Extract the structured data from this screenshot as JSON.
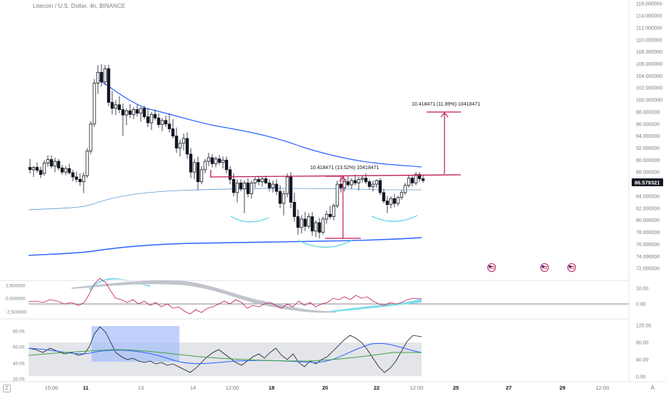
{
  "symbol": {
    "title": "Litecoin / U.S. Dollar, 4h, BINANCE"
  },
  "price_axis": {
    "ticks": [
      "116.000000",
      "114.000000",
      "112.000000",
      "110.000000",
      "108.000000",
      "106.000000",
      "104.000000",
      "102.000000",
      "100.000000",
      "98.000000",
      "96.000000",
      "94.000000",
      "92.000000",
      "90.000000",
      "88.000000",
      "84.000000",
      "82.000000",
      "80.000000",
      "78.000000",
      "76.000000",
      "74.000000",
      "72.000000"
    ],
    "current_price_label": "86.579321",
    "current_price": 86.579321,
    "current_price_bg": "#131722"
  },
  "oscillator_1": {
    "left_labels": [
      "2.500000",
      "0.000000",
      "-2.500000"
    ],
    "right_labels": [
      "10.00",
      "0.00"
    ]
  },
  "oscillator_2": {
    "left_labels": [
      "80.00",
      "60.00",
      "40.00",
      "20.00"
    ],
    "right_labels": [
      "120.00",
      "80.00",
      "40.00",
      "0.00"
    ]
  },
  "time_axis": {
    "labels": [
      "15:00",
      "11",
      "13",
      "14",
      "12:00",
      "18",
      "20",
      "22",
      "12:00",
      "25",
      "27",
      "29",
      "12:00"
    ],
    "bold_labels": [
      "11",
      "18",
      "20",
      "22",
      "25",
      "27",
      "29"
    ]
  },
  "annotations": {
    "measure_1": "10.418471 (13.52%) 10418471",
    "measure_2": "10.418471 (11.89%) 10418471"
  },
  "event_icons": [
    "us-flag-icon",
    "us-flag-icon",
    "us-flag-icon"
  ],
  "corner_left": "Z",
  "corner_right": "A",
  "colors": {
    "up_candle": "#ffffff",
    "down_candle": "#131722",
    "band": "#2962ff",
    "mid_band": "#5b9bd5",
    "trend_line": "#c2185b",
    "curves": "#4dd0e1",
    "osc_area": "#80deea",
    "osc_grey": "#b2b5be",
    "osc_line": "#c2185b",
    "rsi_box": "#a4bdfa",
    "rsi_zone": "#d1d4dc"
  }
}
